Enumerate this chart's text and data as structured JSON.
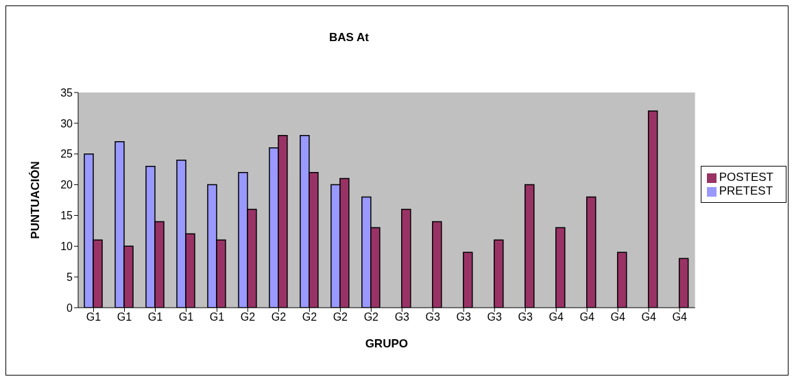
{
  "chart_data": {
    "type": "bar",
    "title": "BAS At",
    "xlabel": "GRUPO",
    "ylabel": "PUNTUACIÓN",
    "categories": [
      "G1",
      "G1",
      "G1",
      "G1",
      "G1",
      "G2",
      "G2",
      "G2",
      "G2",
      "G2",
      "G3",
      "G3",
      "G3",
      "G3",
      "G3",
      "G4",
      "G4",
      "G4",
      "G4",
      "G4"
    ],
    "series": [
      {
        "name": "PRETEST",
        "color": "#9999ff",
        "values": [
          25,
          27,
          23,
          24,
          20,
          22,
          26,
          28,
          20,
          18,
          null,
          null,
          null,
          null,
          null,
          null,
          null,
          null,
          null,
          null
        ]
      },
      {
        "name": "POSTEST",
        "color": "#993366",
        "values": [
          11,
          10,
          14,
          12,
          11,
          16,
          28,
          22,
          21,
          13,
          16,
          14,
          9,
          11,
          20,
          13,
          18,
          9,
          32,
          8
        ]
      }
    ],
    "ylim": [
      0,
      35
    ],
    "yticks": [
      0,
      5,
      10,
      15,
      20,
      25,
      30,
      35
    ],
    "grid": false,
    "legend": "right"
  }
}
